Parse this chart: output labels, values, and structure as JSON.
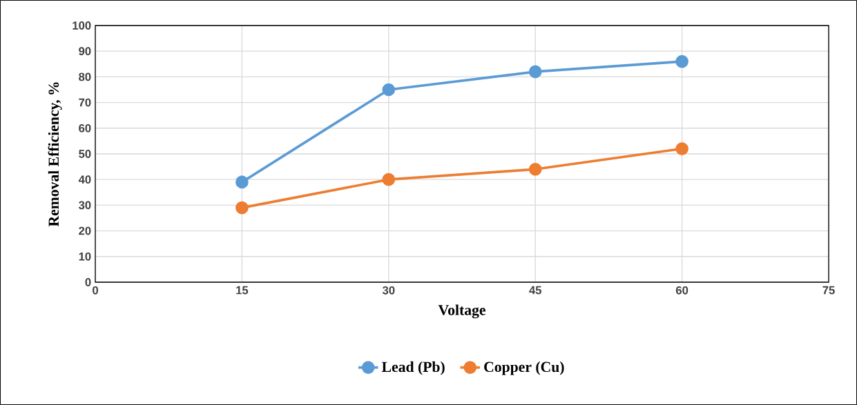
{
  "chart_data": {
    "type": "line",
    "xlabel": "Voltage",
    "ylabel": "Removal Efficiency, %",
    "x": [
      15,
      30,
      45,
      60
    ],
    "series": [
      {
        "name": "Lead (Pb)",
        "color": "#5b9bd5",
        "values": [
          39,
          75,
          82,
          86
        ]
      },
      {
        "name": "Copper (Cu)",
        "color": "#ed7d31",
        "values": [
          29,
          40,
          44,
          52
        ]
      }
    ],
    "xlim": [
      0,
      75
    ],
    "ylim": [
      0,
      100
    ],
    "xticks": [
      0,
      15,
      30,
      45,
      60,
      75
    ],
    "yticks": [
      0,
      10,
      20,
      30,
      40,
      50,
      60,
      70,
      80,
      90,
      100
    ],
    "grid": true,
    "legend": "bottom",
    "marker": "circle",
    "line_style": "solid"
  }
}
